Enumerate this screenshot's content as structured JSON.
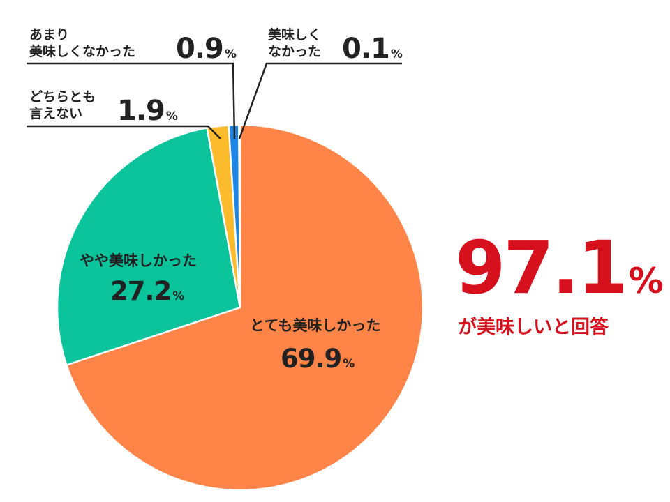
{
  "chart_data": {
    "type": "pie",
    "title": "",
    "slices": [
      {
        "label_lines": [
          "とても美味しかった"
        ],
        "value": "69.9",
        "unit": "%",
        "color": "#ff8447"
      },
      {
        "label_lines": [
          "やや美味しかった"
        ],
        "value": "27.2",
        "unit": "%",
        "color": "#0bc49c"
      },
      {
        "label_lines": [
          "どちらとも",
          "言えない"
        ],
        "value": "1.9",
        "unit": "%",
        "color": "#fbbb2c"
      },
      {
        "label_lines": [
          "あまり",
          "美味しくなかった"
        ],
        "value": "0.9",
        "unit": "%",
        "color": "#1e86e6"
      },
      {
        "label_lines": [
          "美味しく",
          "なかった"
        ],
        "value": "0.1",
        "unit": "%",
        "color": "#1f4fae"
      }
    ],
    "start_angle": "top",
    "direction": "clockwise"
  },
  "highlight": {
    "value": "97.1",
    "unit": "%",
    "caption": "が美味しいと回答",
    "color": "#d7101e"
  }
}
